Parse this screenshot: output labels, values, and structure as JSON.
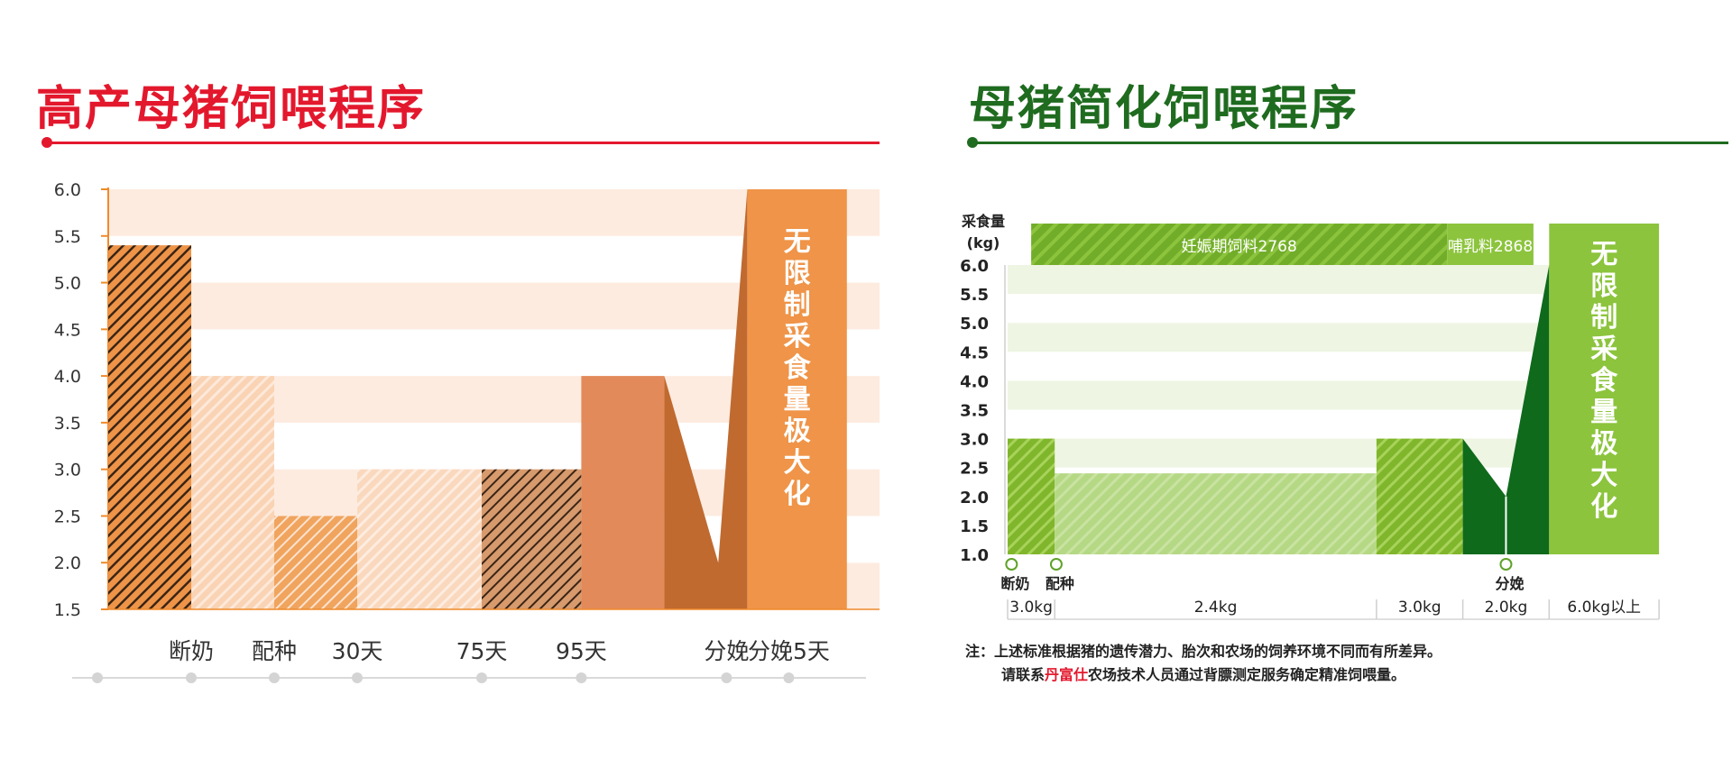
{
  "left": {
    "title": "高产母猪饲喂程序",
    "accent": "#e3182d",
    "banner": "无限制采食量极大化",
    "chart_data": {
      "type": "bar",
      "ylim": [
        1.5,
        6.0
      ],
      "yticks": [
        "6.0",
        "5.5",
        "5.0",
        "4.5",
        "4.0",
        "3.5",
        "3.0",
        "2.5",
        "2.0",
        "1.5"
      ],
      "bars": [
        {
          "from": 0,
          "to": 1,
          "value": 5.4,
          "pattern": "hatch-dark"
        },
        {
          "from": 1,
          "to": 2,
          "value": 4.0,
          "pattern": "hatch-light"
        },
        {
          "from": 2,
          "to": 3,
          "value": 2.5,
          "pattern": "hatch-medium"
        },
        {
          "from": 3,
          "to": 4.5,
          "value": 3.0,
          "pattern": "hatch-pale"
        },
        {
          "from": 4.5,
          "to": 5.7,
          "value": 3.0,
          "pattern": "hatch-brown"
        },
        {
          "from": 5.7,
          "to": 6.7,
          "value": 4.0,
          "pattern": "solid"
        }
      ],
      "drop": {
        "from": 6.7,
        "to": 7.7,
        "start": 4.0,
        "min": 2.0,
        "end": 6.0,
        "min_at": 7.35
      },
      "unlimited": {
        "from": 7.7,
        "to": 8.9,
        "value": 6.0
      },
      "timeline": [
        {
          "label": "断奶",
          "x": 1.0
        },
        {
          "label": "配种",
          "x": 2.0
        },
        {
          "label": "30天",
          "x": 3.0
        },
        {
          "label": "75天",
          "x": 4.5
        },
        {
          "label": "95天",
          "x": 5.7
        },
        {
          "label": "分娩",
          "x": 7.45
        },
        {
          "label": "分娩5天",
          "x": 8.2
        }
      ]
    }
  },
  "right": {
    "title": "母猪简化饲喂程序",
    "accent": "#1f6b1f",
    "banner": "无限制采食量极大化",
    "chart_data": {
      "type": "bar",
      "ylabel": [
        "采食量",
        "(kg)"
      ],
      "ylim": [
        1.0,
        6.0
      ],
      "yticks": [
        "6.0",
        "5.5",
        "5.0",
        "4.5",
        "4.0",
        "3.5",
        "3.0",
        "2.5",
        "2.0",
        "1.5",
        "1.0"
      ],
      "feeds": [
        {
          "label": "妊娠期饲料2768",
          "from": 0.3,
          "to": 5.6
        },
        {
          "label": "哺乳料2868",
          "from": 5.6,
          "to": 6.7
        }
      ],
      "bars": [
        {
          "from": 0.0,
          "to": 0.6,
          "value": 3.0
        },
        {
          "from": 0.6,
          "to": 4.7,
          "value": 2.4
        },
        {
          "from": 4.7,
          "to": 5.8,
          "value": 3.0
        }
      ],
      "drop": {
        "from": 5.8,
        "to": 6.9,
        "start": 3.0,
        "min": 2.0,
        "end": 6.0,
        "min_at": 6.35
      },
      "unlimited": {
        "from": 6.9,
        "to": 8.3,
        "value": 6.0
      },
      "markers": [
        {
          "label": "断奶",
          "x": 0.05
        },
        {
          "label": "配种",
          "x": 0.62
        },
        {
          "label": "分娩",
          "x": 6.35
        }
      ],
      "amounts": [
        {
          "label": "3.0kg",
          "from": 0.0,
          "to": 0.6
        },
        {
          "label": "2.4kg",
          "from": 0.6,
          "to": 4.7
        },
        {
          "label": "3.0kg",
          "from": 4.7,
          "to": 5.8
        },
        {
          "label": "2.0kg",
          "from": 5.8,
          "to": 6.9
        },
        {
          "label": "6.0kg以上",
          "from": 6.9,
          "to": 8.3
        }
      ]
    },
    "note": {
      "line1": "注：上述标准根据猪的遗传潜力、胎次和农场的饲养环境不同而有所差异。",
      "line2_pre": "请联系",
      "brand": "丹富仕",
      "line2_post": "农场技术人员通过背膘测定服务确定精准饲喂量。"
    }
  }
}
